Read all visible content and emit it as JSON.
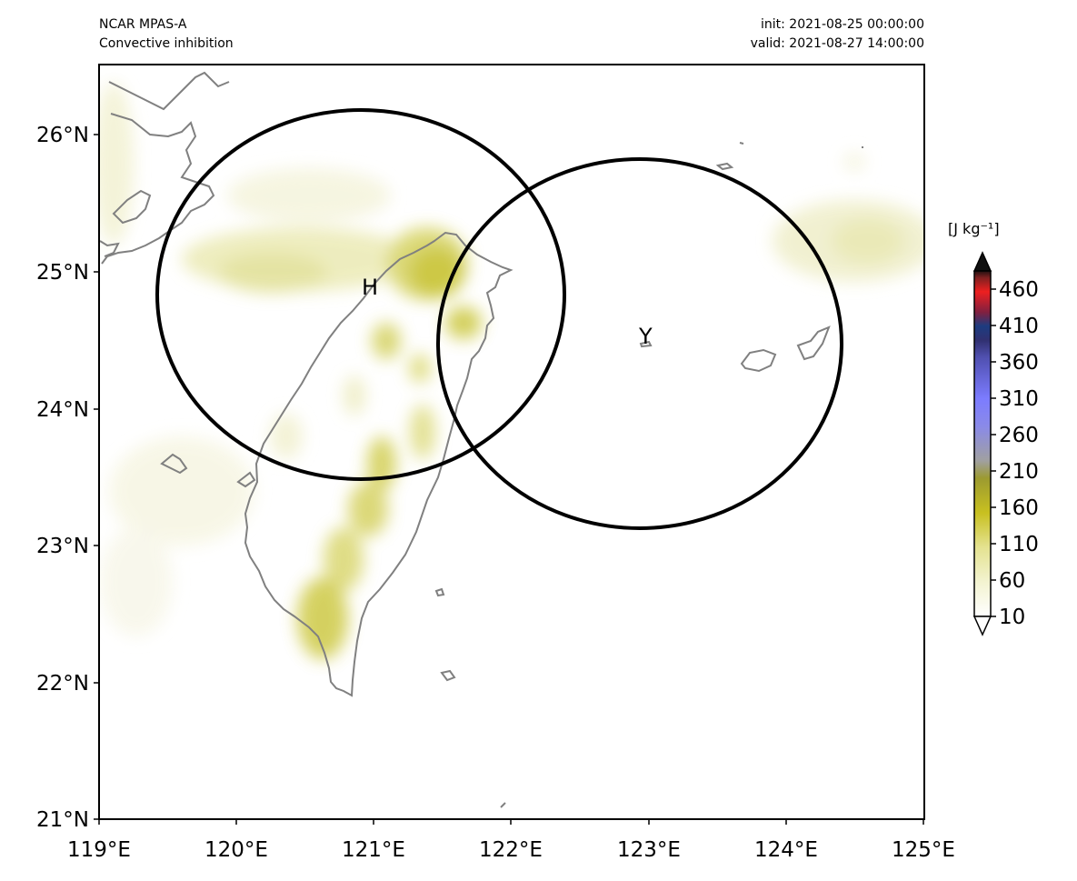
{
  "header": {
    "model": "NCAR MPAS-A",
    "field": "Convective inhibition",
    "init": "init: 2021-08-25 00:00:00",
    "valid": "valid: 2021-08-27 14:00:00"
  },
  "chart_data": {
    "type": "heatmap",
    "title": "Convective inhibition",
    "xlim": [
      119,
      125
    ],
    "ylim": [
      21,
      26.5
    ],
    "x_ticks": [
      "119°E",
      "120°E",
      "121°E",
      "122°E",
      "123°E",
      "124°E",
      "125°E"
    ],
    "y_ticks": [
      "21°N",
      "22°N",
      "23°N",
      "24°N",
      "25°N",
      "26°N"
    ],
    "colorbar": {
      "unit_label": "[J kg⁻¹]",
      "ticks": [
        "10",
        "60",
        "110",
        "160",
        "210",
        "260",
        "310",
        "360",
        "410",
        "460"
      ],
      "extend": "both"
    },
    "markers": [
      {
        "label": "H",
        "lon": 120.95,
        "lat": 24.8
      },
      {
        "label": "Y",
        "lon": 122.95,
        "lat": 24.45
      }
    ],
    "circles": [
      {
        "center_lon": 120.92,
        "center_lat": 24.83,
        "radius_deg_lon": 1.48,
        "radius_deg_lat": 1.36
      },
      {
        "center_lon": 122.95,
        "center_lat": 24.47,
        "radius_deg_lon": 1.47,
        "radius_deg_lat": 1.35
      }
    ],
    "colors": {
      "coastline": "#808080",
      "low": "#f5f5d8",
      "mid": "#c8c020",
      "high_blue": "#8080ff",
      "high_red": "#ee2020"
    }
  }
}
